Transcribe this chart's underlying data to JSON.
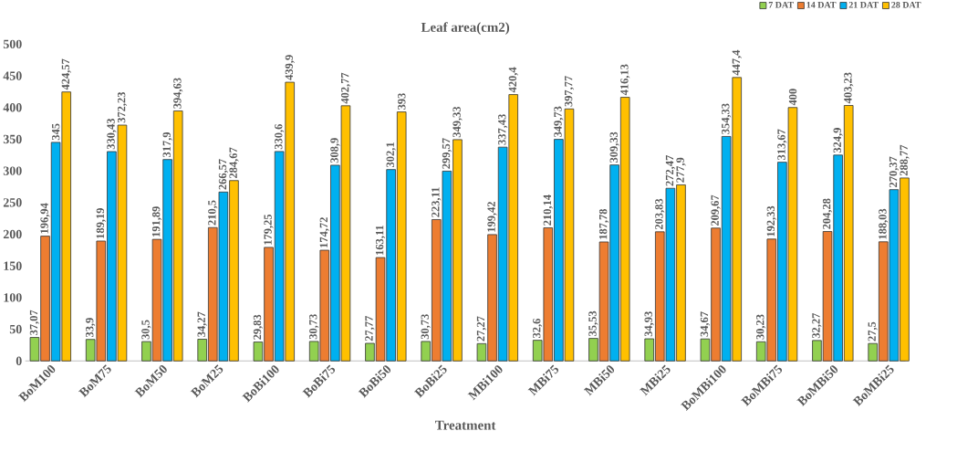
{
  "chart_data": {
    "type": "bar",
    "title": "Leaf area(cm2)",
    "xlabel": "Treatment",
    "categories": [
      "BoM100",
      "BoM75",
      "BoM50",
      "BoM25",
      "BoBi100",
      "BoBi75",
      "BoBi50",
      "BoBi25",
      "MBi100",
      "MBi75",
      "MBi50",
      "MBi25",
      "BoMBi100",
      "BoMBi75",
      "BoMBi50",
      "BoMBi25"
    ],
    "series": [
      {
        "name": "7 DAT",
        "color": "#92d050",
        "values": [
          37.07,
          33.9,
          30.5,
          34.27,
          29.83,
          30.73,
          27.77,
          30.73,
          27.27,
          32.6,
          35.53,
          34.93,
          34.67,
          30.23,
          32.27,
          27.5
        ],
        "value_labels": [
          "37,07",
          "33,9",
          "30,5",
          "34,27",
          "29,83",
          "30,73",
          "27,77",
          "30,73",
          "27,27",
          "32,6",
          "35,53",
          "34,93",
          "34,67",
          "30,23",
          "32,27",
          "27,5"
        ]
      },
      {
        "name": "14 DAT",
        "color": "#ed7d31",
        "values": [
          196.94,
          189.19,
          191.89,
          210.5,
          179.25,
          174.72,
          163.11,
          223.11,
          199.42,
          210.14,
          187.78,
          203.83,
          209.67,
          192.33,
          204.28,
          188.03
        ],
        "value_labels": [
          "196,94",
          "189,19",
          "191,89",
          "210,5",
          "179,25",
          "174,72",
          "163,11",
          "223,11",
          "199,42",
          "210,14",
          "187,78",
          "203,83",
          "209,67",
          "192,33",
          "204,28",
          "188,03"
        ]
      },
      {
        "name": "21 DAT",
        "color": "#00b0f0",
        "values": [
          345,
          330.43,
          317.9,
          266.57,
          330.6,
          308.9,
          302.1,
          299.57,
          337.43,
          349.73,
          309.33,
          272.47,
          354.33,
          313.67,
          324.9,
          270.37
        ],
        "value_labels": [
          "345",
          "330,43",
          "317,9",
          "266,57",
          "330,6",
          "308,9",
          "302,1",
          "299,57",
          "337,43",
          "349,73",
          "309,33",
          "272,47",
          "354,33",
          "313,67",
          "324,9",
          "270,37"
        ]
      },
      {
        "name": "28 DAT",
        "color": "#ffc000",
        "values": [
          424.57,
          372.23,
          394.63,
          284.67,
          439.9,
          402.77,
          393,
          349.33,
          420.4,
          397.77,
          416.13,
          277.9,
          447.4,
          400,
          403.23,
          288.77
        ],
        "value_labels": [
          "424,57",
          "372,23",
          "394,63",
          "284,67",
          "439,9",
          "402,77",
          "393",
          "349,33",
          "420,4",
          "397,77",
          "416,13",
          "277,9",
          "447,4",
          "400",
          "403,23",
          "288,77"
        ]
      }
    ],
    "ylim": [
      0,
      500
    ],
    "yticks": [
      0,
      50,
      100,
      150,
      200,
      250,
      300,
      350,
      400,
      450,
      500
    ],
    "legend": "top right",
    "grid": false
  }
}
